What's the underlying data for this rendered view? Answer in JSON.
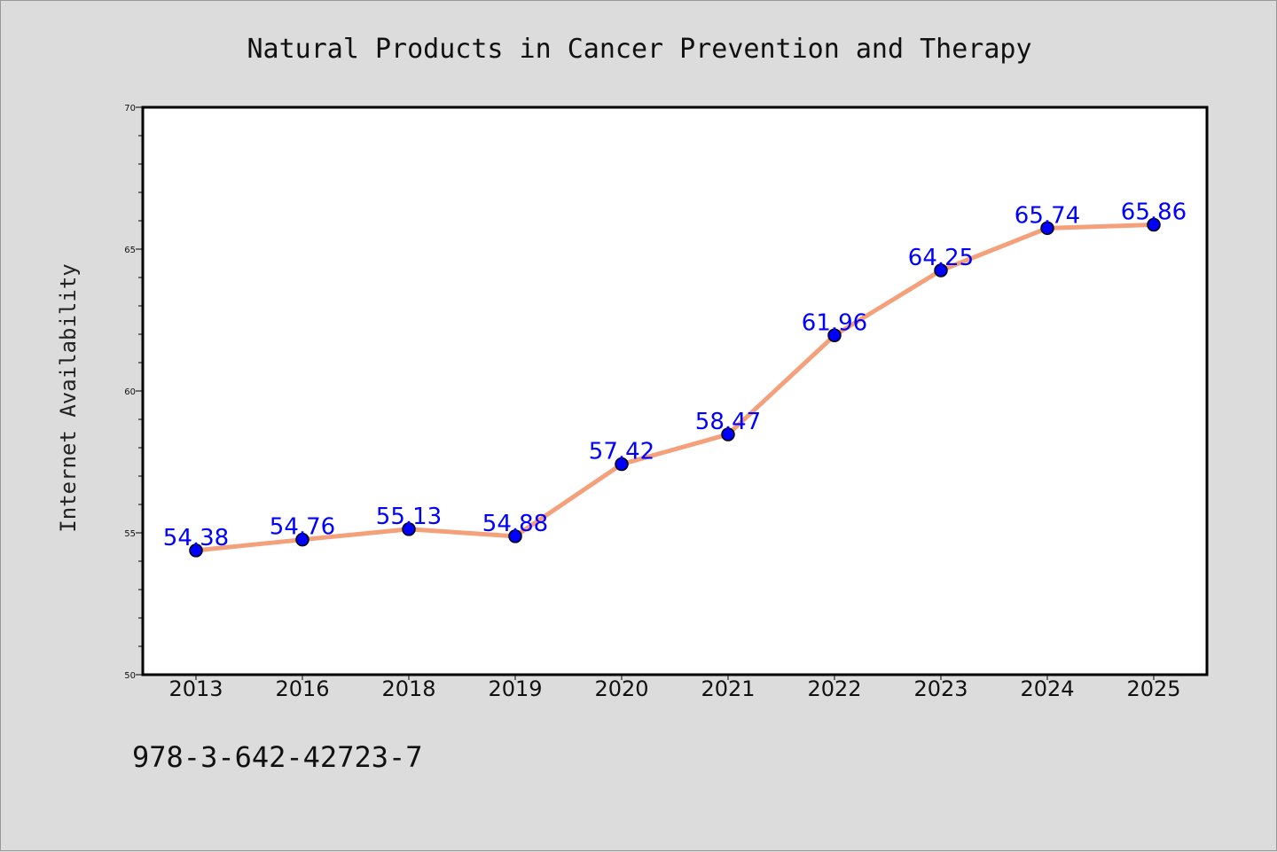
{
  "chart_data": {
    "type": "line",
    "title": "Natural Products in Cancer Prevention and Therapy",
    "xlabel": "",
    "ylabel": "Internet Availability",
    "categories": [
      "2013",
      "2016",
      "2018",
      "2019",
      "2020",
      "2021",
      "2022",
      "2023",
      "2024",
      "2025"
    ],
    "series": [
      {
        "values": [
          54.38,
          54.76,
          55.13,
          54.88,
          57.42,
          58.47,
          61.96,
          64.25,
          65.74,
          65.86
        ],
        "labels": [
          "54.38",
          "54.76",
          "55.13",
          "54.88",
          "57.42",
          "58.47",
          "61.96",
          "64.25",
          "65.74",
          "65.86"
        ],
        "line_color": "#f4a07a",
        "marker_color": "#0000ff"
      }
    ],
    "ylim": [
      50,
      70
    ],
    "yticks": [
      "50",
      "55",
      "60",
      "65",
      "70"
    ],
    "grid": false,
    "legend": "none"
  },
  "footer": {
    "isbn": "978-3-642-42723-7"
  }
}
